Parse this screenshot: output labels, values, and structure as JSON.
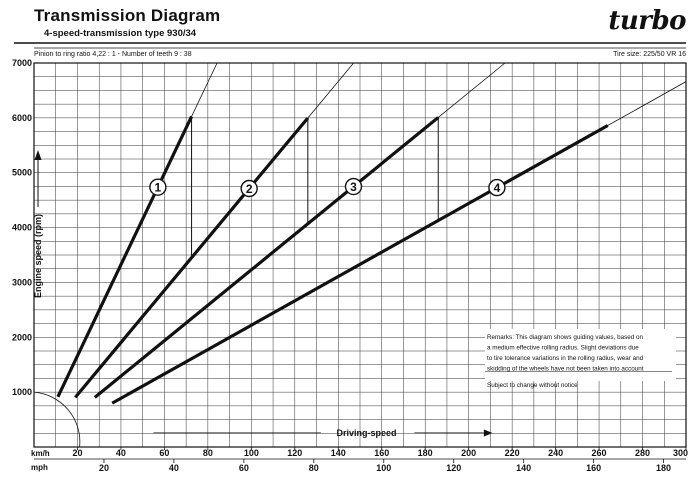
{
  "header": {
    "title": "Transmission Diagram",
    "subtitle": "4-speed-transmission type 930/34",
    "pinion": "Pinion to ring ratio 4,22 : 1 - Number of teeth 9 : 38",
    "tire": "Tire size: 225/50 VR 16",
    "brand": "turbo"
  },
  "chart_data": {
    "type": "line",
    "title": "Transmission Diagram",
    "subtitle": "4-speed-transmission type 930/34",
    "xlabel": "Driving-speed",
    "ylabel": "Engine speed (rpm)",
    "x_unit_primary": "km/h",
    "x_unit_secondary": "mph",
    "xlim": [
      0,
      300
    ],
    "ylim": [
      0,
      7000
    ],
    "x_ticks": [
      20,
      40,
      60,
      80,
      100,
      120,
      140,
      160,
      180,
      200,
      220,
      240,
      260,
      280,
      300
    ],
    "mph_ticks": [
      20,
      40,
      60,
      80,
      100,
      120,
      140,
      160,
      180
    ],
    "y_ticks": [
      1000,
      2000,
      3000,
      4000,
      5000,
      6000,
      7000
    ],
    "grid": true,
    "gear_lines": [
      {
        "gear": "1",
        "rpm_per_kmh": 83.1,
        "label_x": 57,
        "op_range": [
          11,
          72.5
        ],
        "label_text": "1"
      },
      {
        "gear": "2",
        "rpm_per_kmh": 47.6,
        "label_x": 99,
        "op_range": [
          19,
          126
        ],
        "label_text": "2"
      },
      {
        "gear": "3",
        "rpm_per_kmh": 32.3,
        "label_x": 147,
        "op_range": [
          28,
          186
        ],
        "label_text": "3"
      },
      {
        "gear": "4",
        "rpm_per_kmh": 22.2,
        "label_x": 213,
        "op_range": [
          36,
          264
        ],
        "label_text": "4"
      }
    ],
    "shift_points": [
      {
        "kmh": 72.5,
        "from_rpm": 6000,
        "to_rpm": 3450
      },
      {
        "kmh": 126,
        "from_rpm": 6000,
        "to_rpm": 4070
      },
      {
        "kmh": 186,
        "from_rpm": 6000,
        "to_rpm": 4130
      }
    ],
    "remarks": [
      "Remarks: This diagram shows guiding values, based on",
      "a medium effective rolling radius. Slight deviations due",
      "to tire tolerance variations in the rolling radius, wear and",
      "skidding of the wheels have not been taken into account",
      "Subject to change without notice"
    ]
  }
}
